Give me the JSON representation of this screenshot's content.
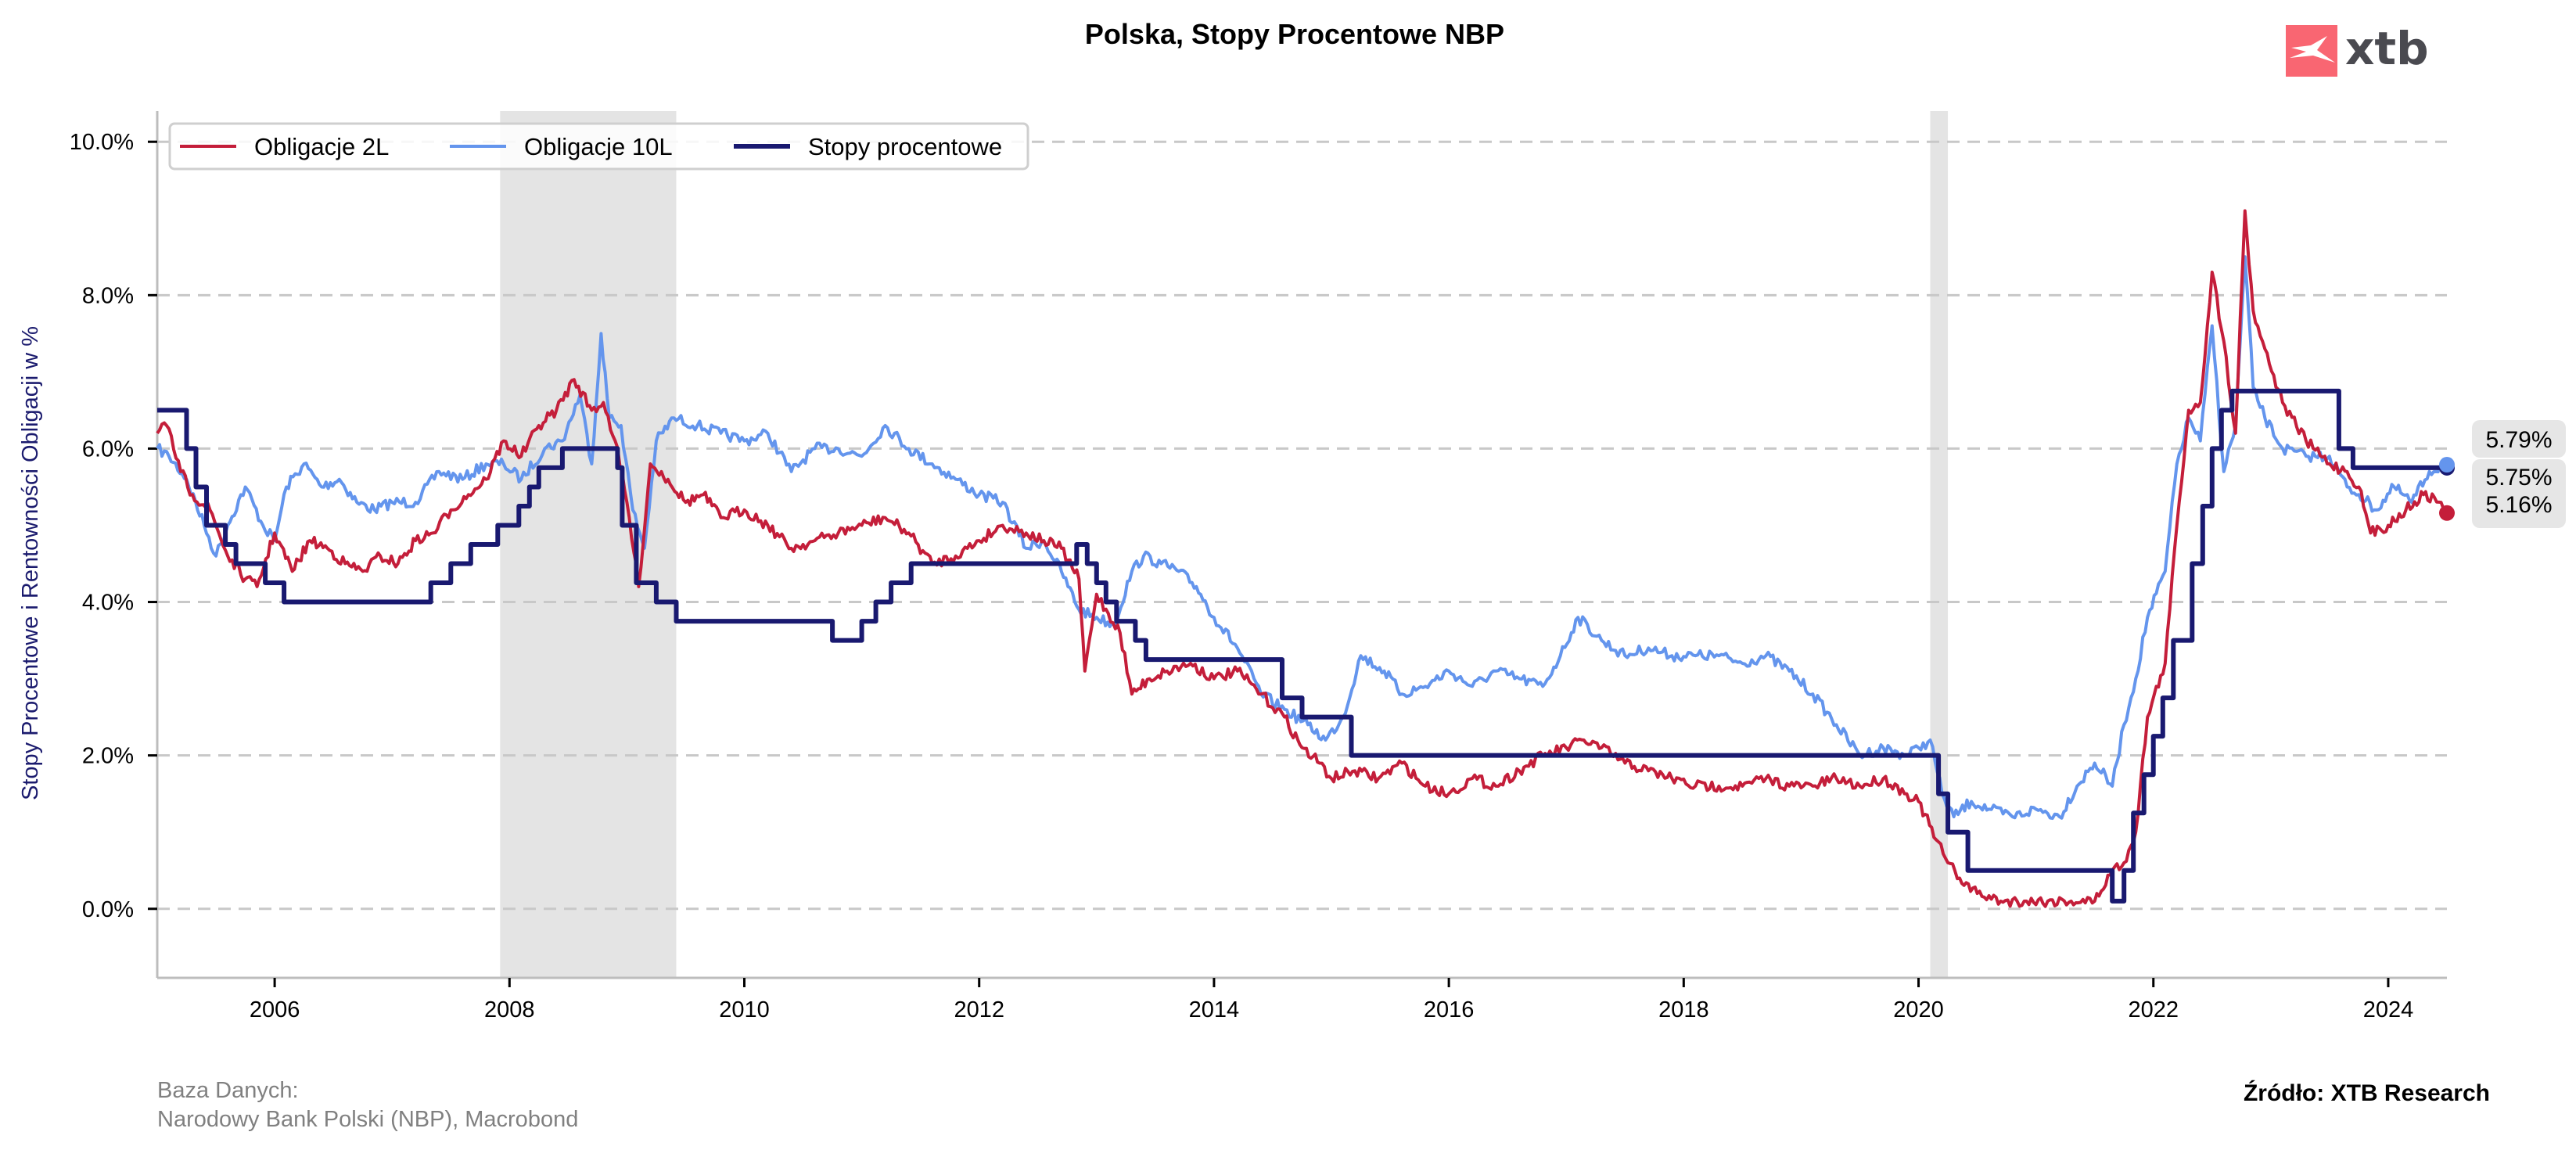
{
  "chart_data": {
    "type": "line",
    "title": "Polska, Stopy Procentowe NBP",
    "xlabel": "",
    "ylabel": "Stopy Procentowe i Rentowności Obligacji w %",
    "xlim": [
      2005.0,
      2024.5
    ],
    "ylim": [
      -0.9,
      10.4
    ],
    "x_ticks": [
      2006,
      2008,
      2010,
      2012,
      2014,
      2016,
      2018,
      2020,
      2022,
      2024
    ],
    "x_tick_labels": [
      "2006",
      "2008",
      "2010",
      "2012",
      "2014",
      "2016",
      "2018",
      "2020",
      "2022",
      "2024"
    ],
    "y_ticks": [
      0,
      2,
      4,
      6,
      8,
      10
    ],
    "y_tick_labels": [
      "0.0%",
      "2.0%",
      "4.0%",
      "6.0%",
      "8.0%",
      "10.0%"
    ],
    "grid": "horizontal-dashed",
    "legend_position": "top-left",
    "shaded_periods": [
      {
        "start": 2007.92,
        "end": 2009.42
      },
      {
        "start": 2020.1,
        "end": 2020.25
      }
    ],
    "series": [
      {
        "name": "Obligacje 2L",
        "color": "#c41e3a",
        "style": "line",
        "x": [
          2005.0,
          2005.08,
          2005.2,
          2005.3,
          2005.45,
          2005.6,
          2005.75,
          2005.85,
          2006.0,
          2006.15,
          2006.3,
          2006.45,
          2006.6,
          2006.75,
          2006.9,
          2007.05,
          2007.2,
          2007.35,
          2007.5,
          2007.65,
          2007.8,
          2007.95,
          2008.1,
          2008.25,
          2008.4,
          2008.55,
          2008.7,
          2008.8,
          2008.9,
          2009.0,
          2009.1,
          2009.2,
          2009.35,
          2009.5,
          2009.65,
          2009.8,
          2010.0,
          2010.2,
          2010.4,
          2010.6,
          2010.8,
          2011.0,
          2011.2,
          2011.4,
          2011.6,
          2011.8,
          2012.0,
          2012.2,
          2012.4,
          2012.55,
          2012.7,
          2012.85,
          2012.9,
          2013.0,
          2013.2,
          2013.3,
          2013.45,
          2013.6,
          2013.8,
          2014.0,
          2014.2,
          2014.4,
          2014.6,
          2014.75,
          2014.9,
          2015.0,
          2015.2,
          2015.4,
          2015.6,
          2015.8,
          2016.0,
          2016.2,
          2016.4,
          2016.6,
          2016.8,
          2017.0,
          2017.15,
          2017.3,
          2017.5,
          2017.7,
          2017.9,
          2018.1,
          2018.3,
          2018.5,
          2018.7,
          2018.9,
          2019.1,
          2019.3,
          2019.5,
          2019.7,
          2019.9,
          2020.0,
          2020.15,
          2020.25,
          2020.35,
          2020.5,
          2020.7,
          2020.9,
          2021.1,
          2021.3,
          2021.5,
          2021.65,
          2021.75,
          2021.85,
          2021.95,
          2022.1,
          2022.2,
          2022.3,
          2022.4,
          2022.5,
          2022.6,
          2022.7,
          2022.78,
          2022.85,
          2022.95,
          2023.1,
          2023.3,
          2023.5,
          2023.65,
          2023.75,
          2023.85,
          2024.0,
          2024.15,
          2024.3,
          2024.45,
          2024.5
        ],
        "values": [
          6.2,
          6.3,
          5.7,
          5.4,
          5.2,
          4.6,
          4.3,
          4.2,
          4.9,
          4.4,
          4.8,
          4.7,
          4.5,
          4.4,
          4.6,
          4.5,
          4.8,
          4.9,
          5.2,
          5.4,
          5.6,
          6.1,
          5.9,
          6.3,
          6.5,
          6.9,
          6.5,
          6.6,
          6.1,
          5.3,
          4.2,
          5.8,
          5.6,
          5.3,
          5.4,
          5.1,
          5.2,
          5.0,
          4.7,
          4.8,
          4.9,
          5.0,
          5.1,
          4.9,
          4.5,
          4.6,
          4.8,
          5.0,
          4.9,
          4.8,
          4.7,
          4.3,
          3.1,
          4.1,
          3.6,
          2.8,
          3.0,
          3.1,
          3.2,
          3.0,
          3.1,
          2.8,
          2.5,
          2.1,
          1.9,
          1.7,
          1.8,
          1.7,
          1.9,
          1.6,
          1.5,
          1.7,
          1.6,
          1.8,
          2.0,
          2.1,
          2.2,
          2.1,
          1.9,
          1.8,
          1.7,
          1.6,
          1.6,
          1.6,
          1.7,
          1.6,
          1.6,
          1.7,
          1.6,
          1.7,
          1.5,
          1.4,
          0.9,
          0.6,
          0.4,
          0.2,
          0.1,
          0.1,
          0.1,
          0.1,
          0.1,
          0.5,
          0.6,
          1.0,
          2.5,
          3.2,
          5.0,
          6.5,
          6.6,
          8.3,
          7.4,
          6.2,
          9.1,
          7.8,
          7.3,
          6.6,
          6.1,
          5.8,
          5.7,
          5.5,
          4.9,
          5.0,
          5.2,
          5.4,
          5.3,
          5.16
        ]
      },
      {
        "name": "Obligacje 10L",
        "color": "#6495ed",
        "style": "line",
        "x": [
          2005.0,
          2005.1,
          2005.25,
          2005.4,
          2005.5,
          2005.6,
          2005.75,
          2005.9,
          2006.0,
          2006.1,
          2006.25,
          2006.4,
          2006.55,
          2006.7,
          2006.85,
          2007.0,
          2007.2,
          2007.4,
          2007.6,
          2007.8,
          2007.95,
          2008.1,
          2008.3,
          2008.45,
          2008.6,
          2008.7,
          2008.78,
          2008.85,
          2008.95,
          2009.05,
          2009.15,
          2009.25,
          2009.4,
          2009.6,
          2009.8,
          2010.0,
          2010.2,
          2010.4,
          2010.6,
          2010.8,
          2011.0,
          2011.2,
          2011.4,
          2011.6,
          2011.8,
          2012.0,
          2012.2,
          2012.4,
          2012.55,
          2012.7,
          2012.85,
          2013.0,
          2013.15,
          2013.3,
          2013.4,
          2013.55,
          2013.7,
          2013.85,
          2014.0,
          2014.2,
          2014.4,
          2014.6,
          2014.8,
          2014.95,
          2015.1,
          2015.25,
          2015.45,
          2015.6,
          2015.8,
          2016.0,
          2016.2,
          2016.4,
          2016.6,
          2016.8,
          2016.95,
          2017.1,
          2017.3,
          2017.5,
          2017.7,
          2017.9,
          2018.1,
          2018.3,
          2018.5,
          2018.7,
          2018.9,
          2019.1,
          2019.3,
          2019.5,
          2019.7,
          2019.9,
          2020.0,
          2020.1,
          2020.2,
          2020.3,
          2020.45,
          2020.6,
          2020.8,
          2021.0,
          2021.2,
          2021.35,
          2021.5,
          2021.65,
          2021.75,
          2021.85,
          2021.95,
          2022.1,
          2022.2,
          2022.3,
          2022.4,
          2022.5,
          2022.6,
          2022.7,
          2022.78,
          2022.85,
          2022.95,
          2023.1,
          2023.3,
          2023.5,
          2023.65,
          2023.75,
          2023.9,
          2024.05,
          2024.2,
          2024.35,
          2024.5
        ],
        "values": [
          6.0,
          5.9,
          5.6,
          5.0,
          4.6,
          5.0,
          5.5,
          5.0,
          4.8,
          5.5,
          5.8,
          5.5,
          5.6,
          5.3,
          5.2,
          5.3,
          5.3,
          5.7,
          5.6,
          5.8,
          5.8,
          5.6,
          6.0,
          6.1,
          6.7,
          5.8,
          7.5,
          6.4,
          6.3,
          5.2,
          4.7,
          6.1,
          6.4,
          6.3,
          6.2,
          6.1,
          6.2,
          5.7,
          6.0,
          6.0,
          5.9,
          6.3,
          6.0,
          5.8,
          5.6,
          5.4,
          5.3,
          4.7,
          4.8,
          4.4,
          3.9,
          3.8,
          3.7,
          4.4,
          4.6,
          4.5,
          4.4,
          4.2,
          3.8,
          3.4,
          2.8,
          2.6,
          2.4,
          2.2,
          2.5,
          3.3,
          3.1,
          2.8,
          2.9,
          3.1,
          2.9,
          3.1,
          3.0,
          2.9,
          3.3,
          3.8,
          3.5,
          3.3,
          3.4,
          3.3,
          3.3,
          3.3,
          3.2,
          3.3,
          3.1,
          2.8,
          2.4,
          2.0,
          2.1,
          2.0,
          2.1,
          2.2,
          1.5,
          1.2,
          1.4,
          1.3,
          1.2,
          1.3,
          1.2,
          1.6,
          1.9,
          1.6,
          2.4,
          3.0,
          3.8,
          4.4,
          5.8,
          6.4,
          6.1,
          7.6,
          5.7,
          6.3,
          8.5,
          6.8,
          6.4,
          6.0,
          5.9,
          5.9,
          5.5,
          5.4,
          5.2,
          5.5,
          5.3,
          5.7,
          5.79
        ]
      },
      {
        "name": "Stopy procentowe",
        "color": "#191970",
        "style": "step",
        "x": [
          2005.0,
          2005.25,
          2005.33,
          2005.42,
          2005.58,
          2005.67,
          2005.92,
          2006.08,
          2006.17,
          2007.33,
          2007.5,
          2007.67,
          2007.9,
          2008.08,
          2008.17,
          2008.25,
          2008.45,
          2008.92,
          2008.96,
          2009.08,
          2009.25,
          2009.42,
          2010.75,
          2010.88,
          2011.0,
          2011.12,
          2011.25,
          2011.42,
          2012.35,
          2012.83,
          2012.92,
          2013.0,
          2013.08,
          2013.17,
          2013.33,
          2013.42,
          2014.58,
          2014.75,
          2014.92,
          2015.17,
          2020.17,
          2020.25,
          2020.42,
          2021.65,
          2021.75,
          2021.83,
          2021.92,
          2022.0,
          2022.08,
          2022.17,
          2022.33,
          2022.42,
          2022.5,
          2022.58,
          2022.67,
          2023.58,
          2023.7,
          2023.83,
          2024.5
        ],
        "values": [
          6.5,
          6.0,
          5.5,
          5.0,
          4.75,
          4.5,
          4.25,
          4.0,
          4.0,
          4.25,
          4.5,
          4.75,
          5.0,
          5.25,
          5.5,
          5.75,
          6.0,
          5.75,
          5.0,
          4.25,
          4.0,
          3.75,
          3.5,
          3.5,
          3.75,
          4.0,
          4.25,
          4.5,
          4.5,
          4.75,
          4.5,
          4.25,
          4.0,
          3.75,
          3.5,
          3.25,
          2.75,
          2.5,
          2.5,
          2.0,
          1.5,
          1.0,
          0.5,
          0.1,
          0.5,
          1.25,
          1.75,
          2.25,
          2.75,
          3.5,
          4.5,
          5.25,
          6.0,
          6.5,
          6.75,
          6.0,
          5.75,
          5.75,
          5.75
        ]
      }
    ],
    "end_labels": [
      {
        "series": "Obligacje 10L",
        "text": "5.79%",
        "value": 5.79
      },
      {
        "series": "Stopy procentowe",
        "text": "5.75%",
        "value": 5.75
      },
      {
        "series": "Obligacje 2L",
        "text": "5.16%",
        "value": 5.16
      }
    ],
    "annotations": {
      "database_label": "Baza Danych:",
      "database_sources": "Narodowy Bank Polski (NBP), Macrobond",
      "source": "Źródło: XTB Research"
    }
  },
  "brand": {
    "logo_text": "xtb",
    "logo_color": "#f96672",
    "logo_text_color": "#4a4a50"
  },
  "colors": {
    "grid": "#c8c8c8",
    "shade": "#e4e4e4",
    "axis": "#bdbdbd",
    "label_box": "#e6e6e6"
  }
}
